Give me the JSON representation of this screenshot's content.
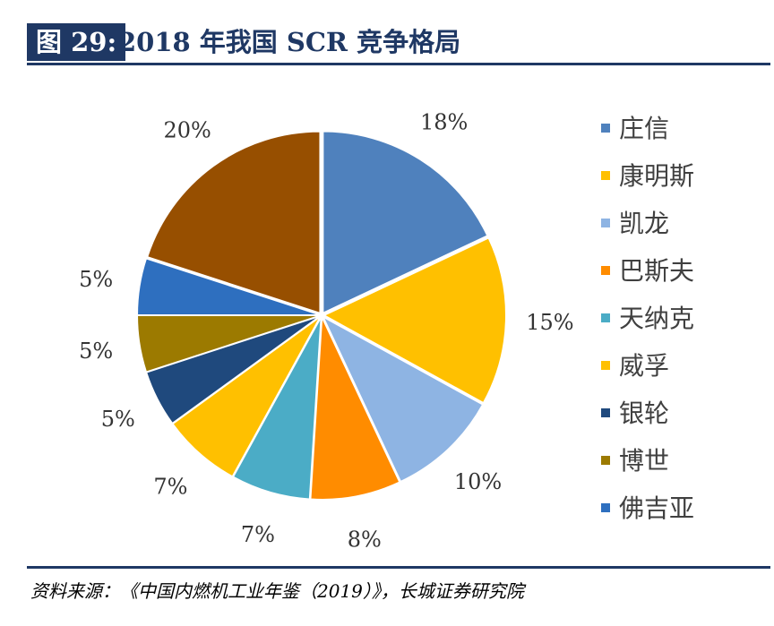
{
  "header": {
    "figure_label": "图 29:",
    "title": "2018 年我国 SCR 竞争格局"
  },
  "source": "资料来源：《中国内燃机工业年鉴（2019）》，长城证券研究院",
  "chart_data": {
    "type": "pie",
    "title": "2018 年我国 SCR 竞争格局",
    "slices": [
      {
        "label": "庄信",
        "value": 18,
        "display": "18%",
        "color": "#4f81bd"
      },
      {
        "label": "康明斯",
        "value": 15,
        "display": "15%",
        "color": "#ffc000"
      },
      {
        "label": "凯龙",
        "value": 10,
        "display": "10%",
        "color": "#8eb4e3"
      },
      {
        "label": "巴斯夫",
        "value": 8,
        "display": "8%",
        "color": "#ff8c00"
      },
      {
        "label": "天纳克",
        "value": 7,
        "display": "7%",
        "color": "#4bacc6"
      },
      {
        "label": "威孚",
        "value": 7,
        "display": "7%",
        "color": "#ffc000"
      },
      {
        "label": "银轮",
        "value": 5,
        "display": "5%",
        "color": "#1f497d"
      },
      {
        "label": "博世",
        "value": 5,
        "display": "5%",
        "color": "#9c7a00"
      },
      {
        "label": "佛吉亚",
        "value": 5,
        "display": "5%",
        "color": "#2e6fbf"
      },
      {
        "label": "",
        "value": 20,
        "display": "20%",
        "color": "#974f00"
      }
    ],
    "legend_position": "right"
  }
}
